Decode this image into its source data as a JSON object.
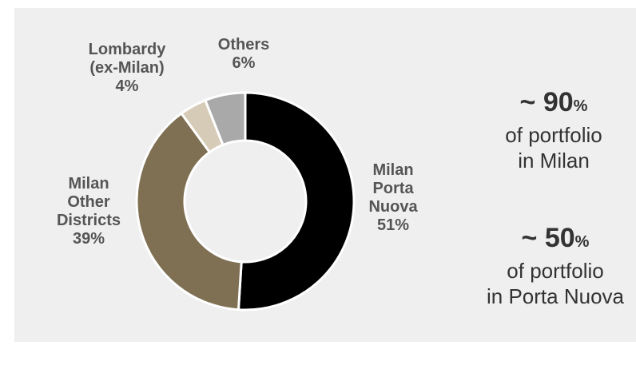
{
  "colors": {
    "panel_bg": "#efefef",
    "milan_porta_nuova": "#000000",
    "milan_other_districts": "#7f7053",
    "lombardy_ex_milan": "#d6cbb7",
    "others": "#a9a9a9",
    "separator": "#ffffff",
    "label_text": "#555555"
  },
  "chart_data": {
    "type": "pie",
    "variant": "donut",
    "title": "",
    "slices": [
      {
        "label_lines": [
          "Milan",
          "Porta",
          "Nuova"
        ],
        "value": 51,
        "value_label": "51%",
        "color": "#000000"
      },
      {
        "label_lines": [
          "Milan",
          "Other",
          "Districts"
        ],
        "value": 39,
        "value_label": "39%",
        "color": "#7f7053"
      },
      {
        "label_lines": [
          "Lombardy",
          "(ex-Milan)"
        ],
        "value": 4,
        "value_label": "4%",
        "color": "#d6cbb7"
      },
      {
        "label_lines": [
          "Others"
        ],
        "value": 6,
        "value_label": "6%",
        "color": "#a9a9a9"
      }
    ],
    "start": "12 o'clock",
    "direction": "clockwise",
    "legend": "none"
  },
  "stats": [
    {
      "prefix": "~ ",
      "number": "90",
      "unit": "%",
      "lines": [
        "of portfolio",
        "in Milan"
      ]
    },
    {
      "prefix": "~ ",
      "number": "50",
      "unit": "%",
      "lines": [
        "of portfolio",
        "in Porta Nuova"
      ]
    }
  ]
}
